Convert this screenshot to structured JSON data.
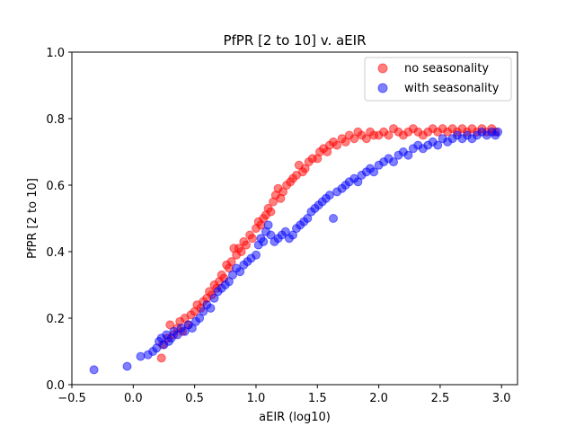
{
  "colors": {
    "no_seasonality": "#ff0000",
    "with_seasonality": "#0000ff"
  },
  "chart_data": {
    "type": "scatter",
    "title": "PfPR [2 to 10] v. aEIR",
    "xlabel": "aEIR (log10)",
    "ylabel": "PfPR [2 to 10]",
    "xlim": [
      -0.5,
      3.13
    ],
    "ylim": [
      0.0,
      1.0
    ],
    "x_ticks": [
      -0.5,
      0.0,
      0.5,
      1.0,
      1.5,
      2.0,
      2.5,
      3.0
    ],
    "x_tick_labels": [
      "−0.5",
      "0.0",
      "0.5",
      "1.0",
      "1.5",
      "2.0",
      "2.5",
      "3.0"
    ],
    "y_ticks": [
      0.0,
      0.2,
      0.4,
      0.6,
      0.8,
      1.0
    ],
    "y_tick_labels": [
      "0.0",
      "0.2",
      "0.4",
      "0.6",
      "0.8",
      "1.0"
    ],
    "grid": false,
    "legend_position": "top-right",
    "series": [
      {
        "name": "no seasonality",
        "color": "#ff0000",
        "points": [
          [
            0.23,
            0.08
          ],
          [
            0.24,
            0.12
          ],
          [
            0.28,
            0.14
          ],
          [
            0.3,
            0.18
          ],
          [
            0.33,
            0.15
          ],
          [
            0.36,
            0.17
          ],
          [
            0.38,
            0.19
          ],
          [
            0.4,
            0.16
          ],
          [
            0.42,
            0.2
          ],
          [
            0.45,
            0.18
          ],
          [
            0.47,
            0.21
          ],
          [
            0.5,
            0.22
          ],
          [
            0.52,
            0.24
          ],
          [
            0.55,
            0.23
          ],
          [
            0.57,
            0.25
          ],
          [
            0.6,
            0.26
          ],
          [
            0.62,
            0.28
          ],
          [
            0.64,
            0.27
          ],
          [
            0.66,
            0.3
          ],
          [
            0.68,
            0.29
          ],
          [
            0.7,
            0.31
          ],
          [
            0.72,
            0.33
          ],
          [
            0.74,
            0.32
          ],
          [
            0.76,
            0.36
          ],
          [
            0.78,
            0.35
          ],
          [
            0.8,
            0.37
          ],
          [
            0.82,
            0.41
          ],
          [
            0.84,
            0.39
          ],
          [
            0.86,
            0.41
          ],
          [
            0.88,
            0.4
          ],
          [
            0.9,
            0.43
          ],
          [
            0.92,
            0.42
          ],
          [
            0.95,
            0.45
          ],
          [
            0.97,
            0.44
          ],
          [
            1.0,
            0.47
          ],
          [
            1.02,
            0.49
          ],
          [
            1.04,
            0.48
          ],
          [
            1.06,
            0.5
          ],
          [
            1.08,
            0.51
          ],
          [
            1.1,
            0.53
          ],
          [
            1.12,
            0.52
          ],
          [
            1.14,
            0.55
          ],
          [
            1.16,
            0.57
          ],
          [
            1.18,
            0.59
          ],
          [
            1.2,
            0.56
          ],
          [
            1.22,
            0.58
          ],
          [
            1.25,
            0.6
          ],
          [
            1.28,
            0.61
          ],
          [
            1.3,
            0.62
          ],
          [
            1.33,
            0.63
          ],
          [
            1.35,
            0.66
          ],
          [
            1.38,
            0.64
          ],
          [
            1.4,
            0.65
          ],
          [
            1.43,
            0.67
          ],
          [
            1.46,
            0.68
          ],
          [
            1.5,
            0.68
          ],
          [
            1.52,
            0.7
          ],
          [
            1.55,
            0.71
          ],
          [
            1.58,
            0.7
          ],
          [
            1.6,
            0.72
          ],
          [
            1.63,
            0.73
          ],
          [
            1.66,
            0.72
          ],
          [
            1.7,
            0.74
          ],
          [
            1.73,
            0.73
          ],
          [
            1.76,
            0.75
          ],
          [
            1.8,
            0.74
          ],
          [
            1.83,
            0.76
          ],
          [
            1.86,
            0.75
          ],
          [
            1.9,
            0.74
          ],
          [
            1.93,
            0.76
          ],
          [
            1.96,
            0.75
          ],
          [
            2.0,
            0.75
          ],
          [
            2.04,
            0.76
          ],
          [
            2.08,
            0.75
          ],
          [
            2.12,
            0.77
          ],
          [
            2.16,
            0.76
          ],
          [
            2.2,
            0.75
          ],
          [
            2.24,
            0.76
          ],
          [
            2.28,
            0.77
          ],
          [
            2.32,
            0.76
          ],
          [
            2.36,
            0.75
          ],
          [
            2.4,
            0.76
          ],
          [
            2.44,
            0.77
          ],
          [
            2.48,
            0.76
          ],
          [
            2.52,
            0.77
          ],
          [
            2.56,
            0.76
          ],
          [
            2.6,
            0.77
          ],
          [
            2.64,
            0.76
          ],
          [
            2.68,
            0.77
          ],
          [
            2.72,
            0.76
          ],
          [
            2.76,
            0.77
          ],
          [
            2.8,
            0.76
          ],
          [
            2.84,
            0.77
          ],
          [
            2.88,
            0.76
          ],
          [
            2.92,
            0.77
          ],
          [
            2.95,
            0.76
          ]
        ]
      },
      {
        "name": "with seasonality",
        "color": "#0000ff",
        "points": [
          [
            -0.32,
            0.045
          ],
          [
            -0.05,
            0.055
          ],
          [
            0.06,
            0.085
          ],
          [
            0.12,
            0.09
          ],
          [
            0.16,
            0.1
          ],
          [
            0.19,
            0.11
          ],
          [
            0.21,
            0.13
          ],
          [
            0.23,
            0.14
          ],
          [
            0.25,
            0.12
          ],
          [
            0.27,
            0.15
          ],
          [
            0.29,
            0.13
          ],
          [
            0.31,
            0.14
          ],
          [
            0.33,
            0.16
          ],
          [
            0.36,
            0.15
          ],
          [
            0.39,
            0.17
          ],
          [
            0.42,
            0.16
          ],
          [
            0.45,
            0.18
          ],
          [
            0.48,
            0.17
          ],
          [
            0.51,
            0.19
          ],
          [
            0.54,
            0.2
          ],
          [
            0.57,
            0.22
          ],
          [
            0.6,
            0.24
          ],
          [
            0.63,
            0.23
          ],
          [
            0.66,
            0.26
          ],
          [
            0.69,
            0.28
          ],
          [
            0.72,
            0.29
          ],
          [
            0.75,
            0.3
          ],
          [
            0.78,
            0.31
          ],
          [
            0.81,
            0.33
          ],
          [
            0.84,
            0.35
          ],
          [
            0.87,
            0.34
          ],
          [
            0.9,
            0.36
          ],
          [
            0.93,
            0.37
          ],
          [
            0.96,
            0.38
          ],
          [
            1.0,
            0.39
          ],
          [
            1.02,
            0.42
          ],
          [
            1.04,
            0.44
          ],
          [
            1.06,
            0.43
          ],
          [
            1.08,
            0.46
          ],
          [
            1.1,
            0.48
          ],
          [
            1.12,
            0.45
          ],
          [
            1.15,
            0.43
          ],
          [
            1.18,
            0.44
          ],
          [
            1.21,
            0.45
          ],
          [
            1.24,
            0.46
          ],
          [
            1.27,
            0.44
          ],
          [
            1.3,
            0.45
          ],
          [
            1.33,
            0.47
          ],
          [
            1.36,
            0.48
          ],
          [
            1.39,
            0.49
          ],
          [
            1.42,
            0.5
          ],
          [
            1.45,
            0.52
          ],
          [
            1.48,
            0.53
          ],
          [
            1.51,
            0.54
          ],
          [
            1.54,
            0.55
          ],
          [
            1.57,
            0.56
          ],
          [
            1.6,
            0.57
          ],
          [
            1.63,
            0.5
          ],
          [
            1.66,
            0.58
          ],
          [
            1.7,
            0.59
          ],
          [
            1.73,
            0.6
          ],
          [
            1.76,
            0.61
          ],
          [
            1.8,
            0.62
          ],
          [
            1.83,
            0.61
          ],
          [
            1.86,
            0.63
          ],
          [
            1.9,
            0.64
          ],
          [
            1.93,
            0.65
          ],
          [
            1.96,
            0.64
          ],
          [
            2.0,
            0.66
          ],
          [
            2.04,
            0.67
          ],
          [
            2.08,
            0.68
          ],
          [
            2.12,
            0.67
          ],
          [
            2.16,
            0.69
          ],
          [
            2.2,
            0.7
          ],
          [
            2.24,
            0.69
          ],
          [
            2.28,
            0.71
          ],
          [
            2.32,
            0.72
          ],
          [
            2.36,
            0.71
          ],
          [
            2.4,
            0.72
          ],
          [
            2.44,
            0.73
          ],
          [
            2.48,
            0.72
          ],
          [
            2.52,
            0.74
          ],
          [
            2.56,
            0.73
          ],
          [
            2.6,
            0.74
          ],
          [
            2.64,
            0.75
          ],
          [
            2.68,
            0.74
          ],
          [
            2.72,
            0.75
          ],
          [
            2.76,
            0.74
          ],
          [
            2.8,
            0.75
          ],
          [
            2.84,
            0.76
          ],
          [
            2.88,
            0.75
          ],
          [
            2.92,
            0.76
          ],
          [
            2.95,
            0.75
          ],
          [
            2.97,
            0.76
          ]
        ]
      }
    ]
  }
}
